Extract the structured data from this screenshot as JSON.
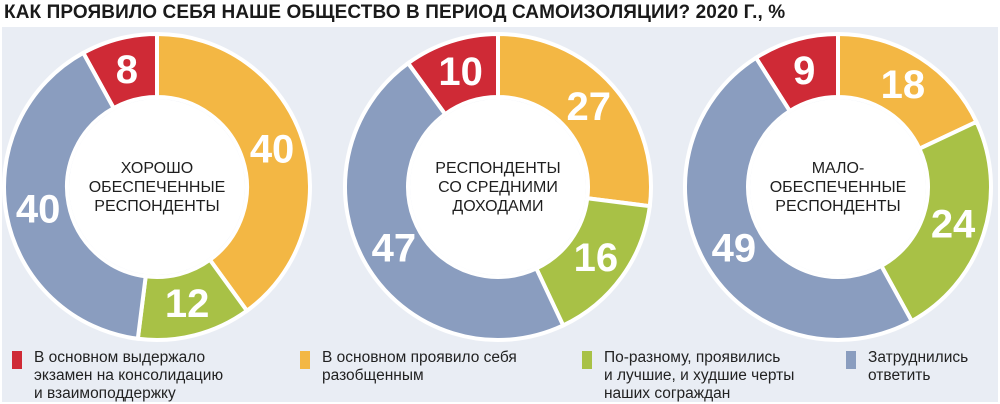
{
  "title": "КАК ПРОЯВИЛО СЕБЯ НАШЕ ОБЩЕСТВО В ПЕРИОД САМОИЗОЛЯЦИИ? 2020 Г., %",
  "colors": {
    "red": "#cf2a36",
    "orange": "#f3b744",
    "green": "#a8c146",
    "blue": "#8a9dbf",
    "background": "#e9edf4"
  },
  "legend": [
    {
      "label": "В основном выдержало\nэкзамен на консолидацию\nи взаимоподдержку",
      "color": "#cf2a36"
    },
    {
      "label": "В основном проявило себя\nразобщенным",
      "color": "#f3b744"
    },
    {
      "label": "По-разному, проявились\nи лучшие, и худшие черты\nнаших сограждан",
      "color": "#a8c146"
    },
    {
      "label": "Затруднились\nответить",
      "color": "#8a9dbf"
    }
  ],
  "chart_data": [
    {
      "type": "pie",
      "variant": "donut",
      "center_label": "ХОРОШО\nОБЕСПЕЧЕННЫЕ\nРЕСПОНДЕНТЫ",
      "categories": [
        "В основном выдержало экзамен на консолидацию и взаимоподдержку",
        "В основном проявило себя разобщенным",
        "По-разному, проявились и лучшие, и худшие черты наших сограждан",
        "Затруднились ответить"
      ],
      "values": [
        8,
        40,
        12,
        40
      ]
    },
    {
      "type": "pie",
      "variant": "donut",
      "center_label": "РЕСПОНДЕНТЫ\nСО СРЕДНИМИ\nДОХОДАМИ",
      "categories": [
        "В основном выдержало экзамен на консолидацию и взаимоподдержку",
        "В основном проявило себя разобщенным",
        "По-разному, проявились и лучшие, и худшие черты наших сограждан",
        "Затруднились ответить"
      ],
      "values": [
        10,
        27,
        16,
        47
      ]
    },
    {
      "type": "pie",
      "variant": "donut",
      "center_label": "МАЛО-\nОБЕСПЕЧЕННЫЕ\nРЕСПОНДЕНТЫ",
      "categories": [
        "В основном выдержало экзамен на консолидацию и взаимоподдержку",
        "В основном проявило себя разобщенным",
        "По-разному, проявились и лучшие, и худшие черты наших сограждан",
        "Затруднились ответить"
      ],
      "values": [
        9,
        18,
        24,
        49
      ]
    }
  ]
}
